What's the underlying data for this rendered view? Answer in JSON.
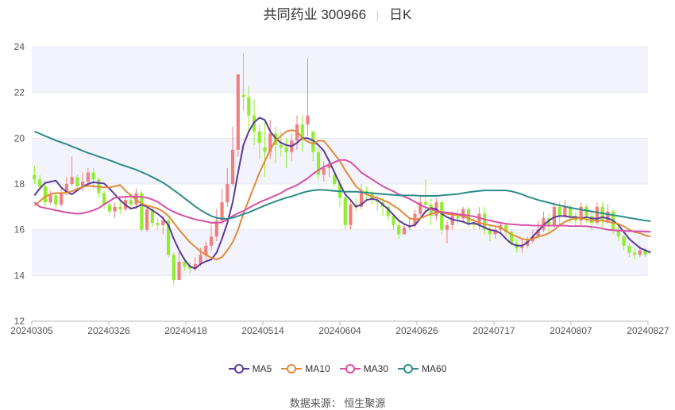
{
  "header": {
    "title": "共同药业 300966",
    "period": "日K"
  },
  "source": "数据来源： 恒生聚源",
  "colors": {
    "up": "#f08080",
    "down": "#90ee30",
    "ma5": "#5b3a9a",
    "ma10": "#e08a3a",
    "ma30": "#d84fa6",
    "ma60": "#2e8b8b",
    "grid_band": "#f3f4fb"
  },
  "chart_data": {
    "type": "candlestick",
    "ylim": [
      12,
      24
    ],
    "yticks": [
      12,
      14,
      16,
      18,
      20,
      22,
      24
    ],
    "xticks": [
      "20240305",
      "20240326",
      "20240418",
      "20240514",
      "20240604",
      "20240626",
      "20240717",
      "20240807",
      "20240827"
    ],
    "legend_position": "bottom",
    "grid": true,
    "candles": [
      [
        18.4,
        18.2,
        18.8,
        18.0
      ],
      [
        18.2,
        17.9,
        18.4,
        17.7
      ],
      [
        17.9,
        17.2,
        18.1,
        17.0
      ],
      [
        17.2,
        17.5,
        17.7,
        17.1
      ],
      [
        17.5,
        17.1,
        17.6,
        16.9
      ],
      [
        17.1,
        17.6,
        17.8,
        17.0
      ],
      [
        17.6,
        18.0,
        18.3,
        17.5
      ],
      [
        18.0,
        18.3,
        19.2,
        17.9
      ],
      [
        18.3,
        17.9,
        18.4,
        17.7
      ],
      [
        17.9,
        18.1,
        18.5,
        17.7
      ],
      [
        18.1,
        18.5,
        18.7,
        17.9
      ],
      [
        18.5,
        18.2,
        18.7,
        17.8
      ],
      [
        18.2,
        17.6,
        18.3,
        17.4
      ],
      [
        17.6,
        17.1,
        17.7,
        16.9
      ],
      [
        17.1,
        16.8,
        17.2,
        16.6
      ],
      [
        16.8,
        17.0,
        17.2,
        16.5
      ],
      [
        17.0,
        16.9,
        17.3,
        16.7
      ],
      [
        16.9,
        17.3,
        17.5,
        16.8
      ],
      [
        17.3,
        17.1,
        17.6,
        16.9
      ],
      [
        17.1,
        17.6,
        17.8,
        16.9
      ],
      [
        17.6,
        16.0,
        17.7,
        15.9
      ],
      [
        16.0,
        16.9,
        17.1,
        15.9
      ],
      [
        16.9,
        16.3,
        17.0,
        16.1
      ],
      [
        16.3,
        16.2,
        16.5,
        16.0
      ],
      [
        16.2,
        16.4,
        16.6,
        15.8
      ],
      [
        16.4,
        14.9,
        16.5,
        14.8
      ],
      [
        14.9,
        13.8,
        15.0,
        13.6
      ],
      [
        13.8,
        14.6,
        15.0,
        13.9
      ],
      [
        14.6,
        14.4,
        14.8,
        14.2
      ],
      [
        14.4,
        14.3,
        14.6,
        14.1
      ],
      [
        14.3,
        14.5,
        14.8,
        14.2
      ],
      [
        14.5,
        14.9,
        15.2,
        14.4
      ],
      [
        14.9,
        15.3,
        15.5,
        14.7
      ],
      [
        15.3,
        15.7,
        16.2,
        15.1
      ],
      [
        15.7,
        16.4,
        16.9,
        15.5
      ],
      [
        16.4,
        17.2,
        17.8,
        16.2
      ],
      [
        17.2,
        18.0,
        18.7,
        17.0
      ],
      [
        18.0,
        19.5,
        20.5,
        17.9
      ],
      [
        19.5,
        22.8,
        22.8,
        19.2
      ],
      [
        21.9,
        21.8,
        23.7,
        21.2
      ],
      [
        21.8,
        21.0,
        22.3,
        20.3
      ],
      [
        21.0,
        20.3,
        21.7,
        19.7
      ],
      [
        20.3,
        19.8,
        20.6,
        19.1
      ],
      [
        19.6,
        19.4,
        20.8,
        18.3
      ],
      [
        19.4,
        20.2,
        20.8,
        19.1
      ],
      [
        20.2,
        19.7,
        20.5,
        18.9
      ],
      [
        19.7,
        19.6,
        20.3,
        19.2
      ],
      [
        19.6,
        19.4,
        20.0,
        18.7
      ],
      [
        19.4,
        19.9,
        20.2,
        19.0
      ],
      [
        19.9,
        20.6,
        21.0,
        19.5
      ],
      [
        20.6,
        20.0,
        21.0,
        19.4
      ],
      [
        20.6,
        21.0,
        23.5,
        20.1
      ],
      [
        20.3,
        19.4,
        20.3,
        19.0
      ],
      [
        19.4,
        18.4,
        19.6,
        18.2
      ],
      [
        18.4,
        18.7,
        19.0,
        18.1
      ],
      [
        18.7,
        18.8,
        19.1,
        18.3
      ],
      [
        18.4,
        18.0,
        18.6,
        17.9
      ],
      [
        18.0,
        17.4,
        18.2,
        17.0
      ],
      [
        17.4,
        16.2,
        17.5,
        16.0
      ],
      [
        16.2,
        17.1,
        17.3,
        16.0
      ],
      [
        17.1,
        17.0,
        17.4,
        16.8
      ],
      [
        17.0,
        17.7,
        18.0,
        16.9
      ],
      [
        17.7,
        17.6,
        17.9,
        17.3
      ],
      [
        17.6,
        17.3,
        17.7,
        17.1
      ],
      [
        17.3,
        17.2,
        17.5,
        16.8
      ],
      [
        17.2,
        17.0,
        17.4,
        16.6
      ],
      [
        17.0,
        16.6,
        17.1,
        16.4
      ],
      [
        16.6,
        16.2,
        16.7,
        16.0
      ],
      [
        16.2,
        15.8,
        16.4,
        15.6
      ],
      [
        15.8,
        16.1,
        16.3,
        15.8
      ],
      [
        16.1,
        16.2,
        16.5,
        16.0
      ],
      [
        16.2,
        16.7,
        16.9,
        16.1
      ],
      [
        16.7,
        17.2,
        17.5,
        16.6
      ],
      [
        17.2,
        17.1,
        18.2,
        16.7
      ],
      [
        17.1,
        16.6,
        17.4,
        16.2
      ],
      [
        16.6,
        17.2,
        17.4,
        16.4
      ],
      [
        17.2,
        16.0,
        17.3,
        15.8
      ],
      [
        16.0,
        16.2,
        16.4,
        15.4
      ],
      [
        16.2,
        16.6,
        16.8,
        16.0
      ],
      [
        16.6,
        16.5,
        16.9,
        16.2
      ],
      [
        16.5,
        16.9,
        17.0,
        16.3
      ],
      [
        16.9,
        16.3,
        17.0,
        16.1
      ],
      [
        16.3,
        16.2,
        16.5,
        16.0
      ],
      [
        16.2,
        16.7,
        17.0,
        16.0
      ],
      [
        16.7,
        16.0,
        17.0,
        15.8
      ],
      [
        16.0,
        15.8,
        16.2,
        15.5
      ],
      [
        15.8,
        16.0,
        16.2,
        15.6
      ],
      [
        16.0,
        16.2,
        16.3,
        15.8
      ],
      [
        16.2,
        15.9,
        16.3,
        15.7
      ],
      [
        15.9,
        15.4,
        16.0,
        15.3
      ],
      [
        15.4,
        15.2,
        15.6,
        15.0
      ],
      [
        15.2,
        15.3,
        15.6,
        15.0
      ],
      [
        15.3,
        15.5,
        15.7,
        15.2
      ],
      [
        15.5,
        15.7,
        16.0,
        15.4
      ],
      [
        15.7,
        16.0,
        16.4,
        15.6
      ],
      [
        16.0,
        16.5,
        16.8,
        15.9
      ],
      [
        16.5,
        16.2,
        16.7,
        15.9
      ],
      [
        16.2,
        17.0,
        17.2,
        16.1
      ],
      [
        17.0,
        16.6,
        17.2,
        16.2
      ],
      [
        16.6,
        17.0,
        17.3,
        16.5
      ],
      [
        17.0,
        16.6,
        17.1,
        16.3
      ],
      [
        16.6,
        16.4,
        16.8,
        16.1
      ],
      [
        16.4,
        17.0,
        17.2,
        16.2
      ],
      [
        17.0,
        16.6,
        17.1,
        16.3
      ],
      [
        16.6,
        16.3,
        16.8,
        16.0
      ],
      [
        16.3,
        17.0,
        17.2,
        16.2
      ],
      [
        17.0,
        16.4,
        17.2,
        16.1
      ],
      [
        16.4,
        16.8,
        17.1,
        16.3
      ],
      [
        16.8,
        16.0,
        16.9,
        15.8
      ],
      [
        16.0,
        15.7,
        16.2,
        15.5
      ],
      [
        15.7,
        15.3,
        15.8,
        15.1
      ],
      [
        15.3,
        15.0,
        15.4,
        14.8
      ],
      [
        15.0,
        14.9,
        15.2,
        14.7
      ],
      [
        14.9,
        15.1,
        15.3,
        14.8
      ],
      [
        15.1,
        14.9,
        15.2,
        14.8
      ]
    ],
    "ma_series": [
      {
        "name": "MA5",
        "values": [
          17.5,
          17.8,
          18.05,
          18.1,
          18.15,
          17.85,
          17.65,
          17.55,
          17.72,
          17.88,
          18.0,
          18.08,
          18.05,
          18.02,
          17.8,
          17.55,
          17.3,
          17.08,
          16.92,
          16.98,
          17.1,
          17.0,
          16.85,
          16.7,
          16.5,
          16.2,
          15.6,
          15.1,
          14.7,
          14.4,
          14.3,
          14.5,
          14.62,
          14.7,
          15.0,
          15.6,
          16.3,
          17.2,
          18.5,
          19.7,
          20.3,
          20.7,
          20.9,
          20.8,
          20.3,
          20.0,
          19.8,
          19.7,
          19.65,
          19.8,
          20.0,
          20.0,
          19.9,
          19.7,
          19.45,
          19.0,
          18.5,
          18.0,
          17.55,
          17.3,
          17.0,
          17.1,
          17.3,
          17.35,
          17.3,
          17.1,
          16.9,
          16.65,
          16.4,
          16.25,
          16.15,
          16.2,
          16.5,
          16.8,
          16.95,
          16.9,
          16.7,
          16.55,
          16.45,
          16.4,
          16.35,
          16.25,
          16.3,
          16.2,
          16.1,
          16.0,
          15.95,
          15.85,
          15.6,
          15.4,
          15.3,
          15.3,
          15.45,
          15.7,
          15.95,
          16.2,
          16.4,
          16.55,
          16.6,
          16.6,
          16.55,
          16.55,
          16.5,
          16.55,
          16.5,
          16.48,
          16.55,
          16.5,
          16.4,
          16.2,
          15.9,
          15.6,
          15.4,
          15.2,
          15.1,
          15.0
        ]
      },
      {
        "name": "MA10",
        "values": [
          17.05,
          17.25,
          17.45,
          17.55,
          17.6,
          17.6,
          17.62,
          17.68,
          17.78,
          17.88,
          17.92,
          17.9,
          17.88,
          17.85,
          17.85,
          17.9,
          17.95,
          17.7,
          17.5,
          17.3,
          17.15,
          17.05,
          17.0,
          16.92,
          16.8,
          16.6,
          16.3,
          16.0,
          15.72,
          15.45,
          15.25,
          15.05,
          14.9,
          14.78,
          14.7,
          14.8,
          15.1,
          15.45,
          16.0,
          16.7,
          17.3,
          17.9,
          18.5,
          19.0,
          19.5,
          19.9,
          20.1,
          20.3,
          20.35,
          20.3,
          20.0,
          19.85,
          19.75,
          19.9,
          19.88,
          19.6,
          19.3,
          19.0,
          18.6,
          18.25,
          17.9,
          17.7,
          17.55,
          17.45,
          17.4,
          17.3,
          17.2,
          17.05,
          16.9,
          16.7,
          16.5,
          16.45,
          16.5,
          16.6,
          16.7,
          16.75,
          16.75,
          16.7,
          16.65,
          16.65,
          16.6,
          16.5,
          16.4,
          16.3,
          16.25,
          16.2,
          16.15,
          16.1,
          15.95,
          15.8,
          15.7,
          15.6,
          15.55,
          15.6,
          15.7,
          15.75,
          15.85,
          16.0,
          16.2,
          16.35,
          16.45,
          16.5,
          16.5,
          16.45,
          16.4,
          16.4,
          16.4,
          16.35,
          16.3,
          16.25,
          16.15,
          16.0,
          15.9,
          15.85,
          15.75,
          15.7
        ]
      },
      {
        "name": "MA30",
        "values": [
          17.2,
          17.0,
          16.95,
          16.9,
          16.85,
          16.8,
          16.75,
          16.72,
          16.7,
          16.72,
          16.78,
          16.85,
          16.95,
          17.1,
          17.25,
          17.4,
          17.42,
          17.44,
          17.45,
          17.45,
          17.43,
          17.4,
          17.32,
          17.22,
          17.05,
          16.9,
          16.78,
          16.68,
          16.6,
          16.52,
          16.45,
          16.4,
          16.36,
          16.3,
          16.3,
          16.32,
          16.45,
          16.6,
          16.72,
          16.82,
          16.95,
          17.08,
          17.2,
          17.3,
          17.4,
          17.5,
          17.6,
          17.75,
          17.85,
          17.95,
          18.1,
          18.25,
          18.45,
          18.6,
          18.75,
          18.85,
          18.95,
          19.05,
          19.05,
          18.95,
          18.75,
          18.5,
          18.35,
          18.2,
          18.05,
          17.9,
          17.78,
          17.68,
          17.55,
          17.45,
          17.35,
          17.22,
          17.08,
          16.98,
          16.9,
          16.82,
          16.78,
          16.75,
          16.72,
          16.68,
          16.65,
          16.62,
          16.58,
          16.52,
          16.45,
          16.4,
          16.35,
          16.3,
          16.26,
          16.24,
          16.22,
          16.2,
          16.2,
          16.18,
          16.18,
          16.18,
          16.18,
          16.18,
          16.18,
          16.18,
          16.16,
          16.16,
          16.15,
          16.15,
          16.12,
          16.1,
          16.05,
          16.0,
          15.98,
          15.96,
          15.95,
          15.94,
          15.93,
          15.93,
          15.92,
          15.91
        ]
      },
      {
        "name": "MA60",
        "values": [
          20.3,
          20.2,
          20.1,
          20.0,
          19.9,
          19.82,
          19.74,
          19.64,
          19.55,
          19.45,
          19.36,
          19.28,
          19.2,
          19.12,
          19.04,
          18.95,
          18.86,
          18.78,
          18.7,
          18.62,
          18.52,
          18.42,
          18.3,
          18.18,
          18.06,
          17.9,
          17.73,
          17.56,
          17.38,
          17.2,
          17.02,
          16.86,
          16.72,
          16.6,
          16.52,
          16.48,
          16.48,
          16.52,
          16.6,
          16.68,
          16.76,
          16.86,
          16.96,
          17.06,
          17.15,
          17.24,
          17.32,
          17.4,
          17.46,
          17.54,
          17.62,
          17.68,
          17.72,
          17.75,
          17.74,
          17.72,
          17.7,
          17.68,
          17.66,
          17.66,
          17.66,
          17.64,
          17.62,
          17.6,
          17.58,
          17.56,
          17.54,
          17.52,
          17.5,
          17.5,
          17.5,
          17.5,
          17.48,
          17.48,
          17.48,
          17.48,
          17.5,
          17.52,
          17.54,
          17.56,
          17.6,
          17.64,
          17.67,
          17.7,
          17.72,
          17.72,
          17.72,
          17.72,
          17.72,
          17.68,
          17.62,
          17.55,
          17.45,
          17.38,
          17.3,
          17.24,
          17.18,
          17.12,
          17.06,
          17.02,
          16.96,
          16.92,
          16.88,
          16.84,
          16.8,
          16.76,
          16.72,
          16.68,
          16.64,
          16.6,
          16.56,
          16.52,
          16.48,
          16.44,
          16.4,
          16.38
        ]
      }
    ]
  }
}
